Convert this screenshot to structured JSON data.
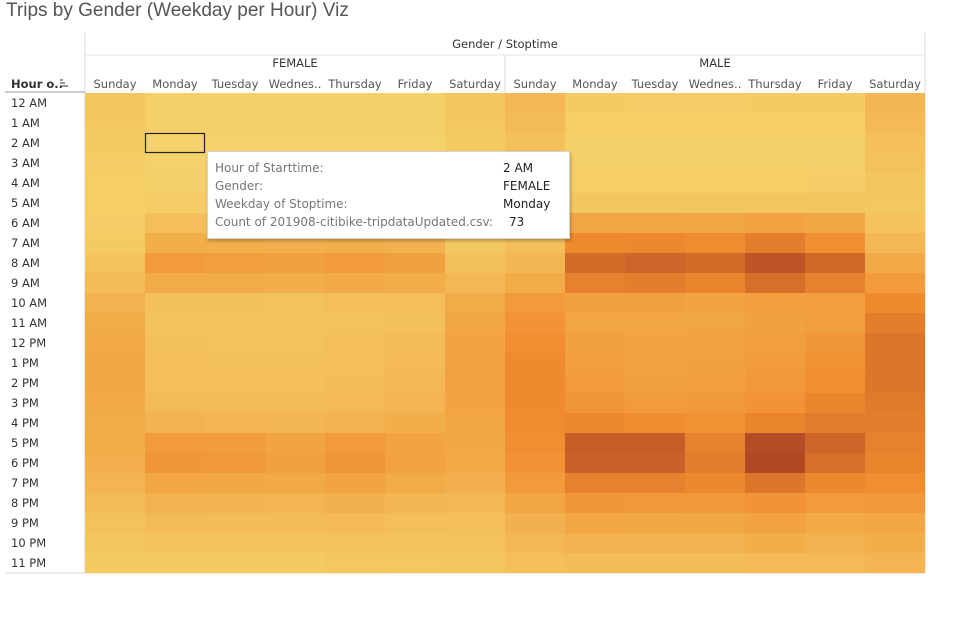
{
  "title": "Trips by Gender (Weekday per Hour) Viz",
  "chart_data": {
    "type": "heatmap",
    "title": "Trips by Gender (Weekday per Hour) Viz",
    "column_header": "Gender / Stoptime",
    "row_header": "Hour o..",
    "groups": [
      "FEMALE",
      "MALE"
    ],
    "days": [
      "Sunday",
      "Monday",
      "Tuesday",
      "Wednes..",
      "Thursday",
      "Friday",
      "Saturday"
    ],
    "hours": [
      "12 AM",
      "1 AM",
      "2 AM",
      "3 AM",
      "4 AM",
      "5 AM",
      "6 AM",
      "7 AM",
      "8 AM",
      "9 AM",
      "10 AM",
      "11 AM",
      "12 PM",
      "1 PM",
      "2 PM",
      "3 PM",
      "4 PM",
      "5 PM",
      "6 PM",
      "7 PM",
      "8 PM",
      "9 PM",
      "10 PM",
      "11 PM"
    ],
    "color_scale": {
      "low": "#f5d36a",
      "mid": "#f08a2e",
      "high": "#a33a22"
    },
    "values": {
      "FEMALE": [
        [
          0.1,
          0.03,
          0.03,
          0.03,
          0.03,
          0.03,
          0.1
        ],
        [
          0.08,
          0.02,
          0.02,
          0.02,
          0.02,
          0.02,
          0.08
        ],
        [
          0.06,
          0.01,
          0.01,
          0.01,
          0.01,
          0.01,
          0.06
        ],
        [
          0.05,
          0.01,
          0.01,
          0.01,
          0.01,
          0.01,
          0.05
        ],
        [
          0.04,
          0.02,
          0.02,
          0.02,
          0.02,
          0.02,
          0.04
        ],
        [
          0.04,
          0.05,
          0.05,
          0.05,
          0.05,
          0.05,
          0.04
        ],
        [
          0.05,
          0.15,
          0.15,
          0.15,
          0.15,
          0.14,
          0.05
        ],
        [
          0.07,
          0.28,
          0.28,
          0.27,
          0.28,
          0.26,
          0.08
        ],
        [
          0.12,
          0.42,
          0.4,
          0.38,
          0.42,
          0.38,
          0.14
        ],
        [
          0.17,
          0.3,
          0.3,
          0.28,
          0.32,
          0.28,
          0.2
        ],
        [
          0.25,
          0.14,
          0.14,
          0.13,
          0.15,
          0.15,
          0.3
        ],
        [
          0.3,
          0.12,
          0.12,
          0.12,
          0.13,
          0.14,
          0.34
        ],
        [
          0.32,
          0.14,
          0.13,
          0.13,
          0.15,
          0.17,
          0.36
        ],
        [
          0.33,
          0.15,
          0.14,
          0.14,
          0.16,
          0.19,
          0.37
        ],
        [
          0.33,
          0.16,
          0.15,
          0.15,
          0.17,
          0.2,
          0.37
        ],
        [
          0.32,
          0.18,
          0.17,
          0.17,
          0.19,
          0.23,
          0.36
        ],
        [
          0.3,
          0.25,
          0.23,
          0.22,
          0.25,
          0.28,
          0.34
        ],
        [
          0.29,
          0.42,
          0.41,
          0.36,
          0.42,
          0.36,
          0.33
        ],
        [
          0.27,
          0.45,
          0.44,
          0.38,
          0.46,
          0.37,
          0.31
        ],
        [
          0.23,
          0.34,
          0.33,
          0.31,
          0.36,
          0.3,
          0.27
        ],
        [
          0.18,
          0.25,
          0.24,
          0.23,
          0.26,
          0.22,
          0.21
        ],
        [
          0.13,
          0.18,
          0.17,
          0.17,
          0.19,
          0.16,
          0.16
        ],
        [
          0.1,
          0.12,
          0.12,
          0.12,
          0.13,
          0.12,
          0.13
        ],
        [
          0.07,
          0.07,
          0.07,
          0.07,
          0.08,
          0.09,
          0.1
        ]
      ],
      "MALE": [
        [
          0.2,
          0.06,
          0.05,
          0.05,
          0.06,
          0.06,
          0.22
        ],
        [
          0.17,
          0.04,
          0.04,
          0.04,
          0.04,
          0.04,
          0.19
        ],
        [
          0.14,
          0.03,
          0.03,
          0.03,
          0.03,
          0.03,
          0.16
        ],
        [
          0.12,
          0.03,
          0.03,
          0.03,
          0.03,
          0.03,
          0.13
        ],
        [
          0.1,
          0.04,
          0.04,
          0.04,
          0.04,
          0.05,
          0.1
        ],
        [
          0.08,
          0.1,
          0.1,
          0.1,
          0.1,
          0.1,
          0.08
        ],
        [
          0.1,
          0.35,
          0.35,
          0.34,
          0.36,
          0.33,
          0.12
        ],
        [
          0.15,
          0.55,
          0.56,
          0.53,
          0.62,
          0.52,
          0.2
        ],
        [
          0.22,
          0.72,
          0.75,
          0.72,
          0.85,
          0.73,
          0.32
        ],
        [
          0.3,
          0.6,
          0.62,
          0.58,
          0.7,
          0.6,
          0.42
        ],
        [
          0.42,
          0.38,
          0.38,
          0.36,
          0.4,
          0.4,
          0.55
        ],
        [
          0.48,
          0.35,
          0.35,
          0.35,
          0.38,
          0.4,
          0.62
        ],
        [
          0.52,
          0.38,
          0.36,
          0.37,
          0.4,
          0.45,
          0.66
        ],
        [
          0.55,
          0.4,
          0.37,
          0.38,
          0.42,
          0.5,
          0.66
        ],
        [
          0.55,
          0.42,
          0.38,
          0.39,
          0.44,
          0.52,
          0.66
        ],
        [
          0.55,
          0.46,
          0.42,
          0.43,
          0.48,
          0.58,
          0.64
        ],
        [
          0.54,
          0.56,
          0.53,
          0.5,
          0.58,
          0.63,
          0.62
        ],
        [
          0.52,
          0.8,
          0.8,
          0.6,
          0.9,
          0.76,
          0.6
        ],
        [
          0.48,
          0.78,
          0.78,
          0.62,
          0.92,
          0.7,
          0.58
        ],
        [
          0.42,
          0.6,
          0.6,
          0.56,
          0.66,
          0.56,
          0.52
        ],
        [
          0.34,
          0.45,
          0.44,
          0.43,
          0.48,
          0.42,
          0.44
        ],
        [
          0.26,
          0.34,
          0.33,
          0.33,
          0.37,
          0.32,
          0.34
        ],
        [
          0.2,
          0.25,
          0.25,
          0.25,
          0.28,
          0.25,
          0.28
        ],
        [
          0.15,
          0.17,
          0.17,
          0.17,
          0.19,
          0.19,
          0.23
        ]
      ]
    },
    "selected_cell": {
      "group": "FEMALE",
      "day": "Monday",
      "hour": "2 AM"
    }
  },
  "tooltip": {
    "rows": [
      {
        "label": "Hour of Starttime:",
        "value": "2 AM"
      },
      {
        "label": "Gender:",
        "value": "FEMALE"
      },
      {
        "label": "Weekday of Stoptime:",
        "value": "Monday"
      },
      {
        "label": "Count of 201908-citibike-tripdataUpdated.csv:",
        "value": "73"
      }
    ]
  }
}
